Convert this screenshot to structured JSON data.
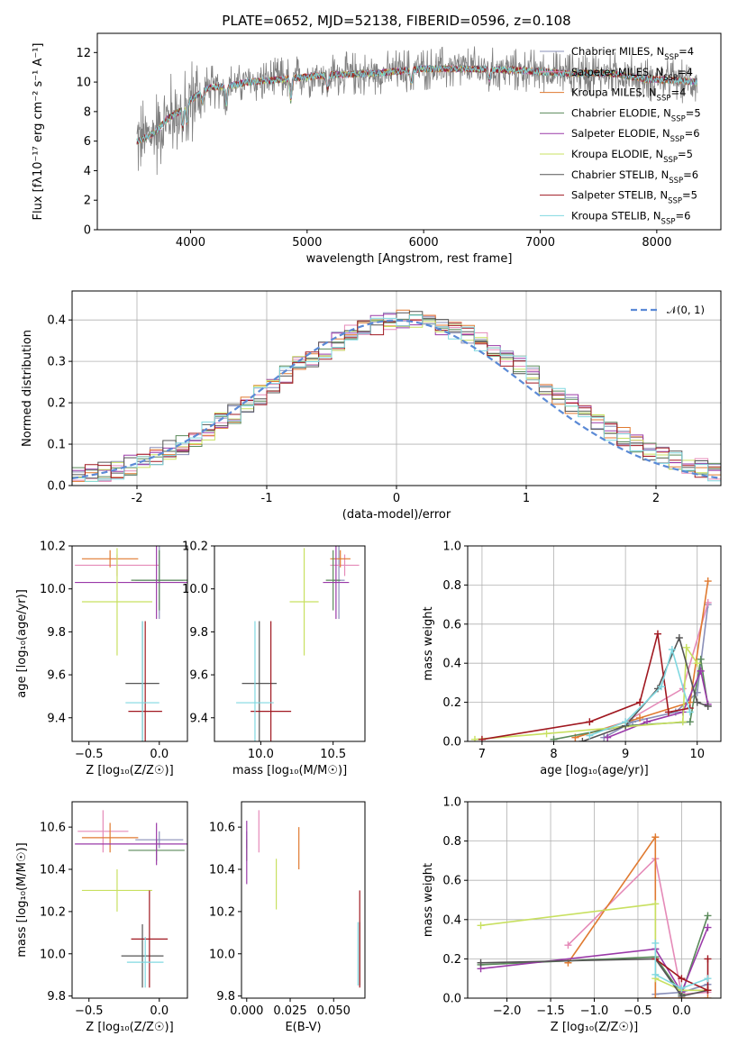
{
  "figure": {
    "title": "PLATE=0652, MJD=52138, FIBERID=0596, z=0.108",
    "palette": {
      "miles_chabrier": "#8a8fb8",
      "miles_salpeter": "#e58ab8",
      "miles_kroupa": "#e07a30",
      "elodie_chabrier": "#5a8a5a",
      "elodie_salpeter": "#9a3aa8",
      "elodie_kroupa": "#c8e060",
      "stelib_chabrier": "#555555",
      "stelib_salpeter": "#a01820",
      "stelib_kroupa": "#80d8e0"
    }
  },
  "chart_data": [
    {
      "id": "spectrum",
      "type": "line",
      "xlabel": "wavelength [Angstrom, rest frame]",
      "ylabel": "Flux [fλ10⁻¹⁷ erg cm⁻² s⁻¹ A⁻¹]",
      "xlim": [
        3200,
        8550
      ],
      "ylim": [
        0,
        13.3
      ],
      "xticks": [
        "4000",
        "5000",
        "6000",
        "7000",
        "8000"
      ],
      "yticks": [
        "0",
        "2",
        "4",
        "6",
        "8",
        "10",
        "12"
      ],
      "legend_position": "top-right",
      "continuum": {
        "x": [
          3550,
          3700,
          3800,
          3900,
          4000,
          4150,
          4300,
          4500,
          4800,
          5200,
          5600,
          6000,
          6400,
          6800,
          7200,
          7600,
          7900,
          8200,
          8350
        ],
        "y": [
          6.0,
          6.6,
          7.5,
          8.0,
          8.8,
          9.6,
          9.7,
          10.0,
          10.2,
          10.5,
          10.6,
          10.9,
          10.9,
          10.8,
          10.6,
          10.6,
          10.2,
          10.1,
          10.0
        ]
      },
      "series": [
        {
          "name": "Chabrier MILES, N_SSP=4",
          "color_key": "miles_chabrier"
        },
        {
          "name": "Salpeter MILES, N_SSP=4",
          "color_key": "miles_salpeter"
        },
        {
          "name": "Kroupa MILES, N_SSP=4",
          "color_key": "miles_kroupa"
        },
        {
          "name": "Chabrier ELODIE, N_SSP=5",
          "color_key": "elodie_chabrier"
        },
        {
          "name": "Salpeter ELODIE, N_SSP=6",
          "color_key": "elodie_salpeter"
        },
        {
          "name": "Kroupa ELODIE, N_SSP=5",
          "color_key": "elodie_kroupa"
        },
        {
          "name": "Chabrier STELIB, N_SSP=6",
          "color_key": "stelib_chabrier"
        },
        {
          "name": "Salpeter STELIB, N_SSP=5",
          "color_key": "stelib_salpeter"
        },
        {
          "name": "Kroupa STELIB, N_SSP=6",
          "color_key": "stelib_kroupa"
        }
      ]
    },
    {
      "id": "residuals",
      "type": "line",
      "xlabel": "(data-model)/error",
      "ylabel": "Normed distribution",
      "xlim": [
        -2.5,
        2.5
      ],
      "ylim": [
        0,
        0.47
      ],
      "xticks": [
        -2,
        -1,
        0,
        1,
        2
      ],
      "yticks": [
        "0.0",
        "0.1",
        "0.2",
        "0.3",
        "0.4"
      ],
      "grid": true,
      "legend_position": "top-right",
      "reference_label": "𝒩(0, 1)",
      "bin_width": 0.1
    },
    {
      "id": "age_vs_Z",
      "type": "scatter",
      "xlabel": "Z [log₁₀(Z/Z☉)]",
      "ylabel": "age  [log₁₀(age/yr)]",
      "xlim": [
        -0.62,
        0.2
      ],
      "ylim": [
        9.29,
        10.2
      ],
      "xticks": [
        "−0.5",
        "0.0"
      ],
      "yticks": [
        "9.4",
        "9.6",
        "9.8",
        "10.0",
        "10.2"
      ],
      "points": [
        {
          "key": "miles_chabrier",
          "x": 0.0,
          "y": 10.04,
          "xerr": 0.17,
          "yerr": 0.18
        },
        {
          "key": "miles_salpeter",
          "x": -0.3,
          "y": 10.11,
          "xerr": 0.3,
          "yerr": 0.05
        },
        {
          "key": "miles_kroupa",
          "x": -0.35,
          "y": 10.14,
          "xerr": 0.2,
          "yerr": 0.04
        },
        {
          "key": "elodie_chabrier",
          "x": 0.0,
          "y": 10.04,
          "xerr": 0.2,
          "yerr": 0.14
        },
        {
          "key": "elodie_salpeter",
          "x": -0.02,
          "y": 10.03,
          "xerr": 0.58,
          "yerr": 0.17
        },
        {
          "key": "elodie_kroupa",
          "x": -0.3,
          "y": 9.94,
          "xerr": 0.25,
          "yerr": 0.25
        },
        {
          "key": "stelib_chabrier",
          "x": -0.12,
          "y": 9.56,
          "xerr": 0.12,
          "yerr": 0.29
        },
        {
          "key": "stelib_salpeter",
          "x": -0.1,
          "y": 9.43,
          "xerr": 0.12,
          "yerr": 0.42
        },
        {
          "key": "stelib_kroupa",
          "x": -0.12,
          "y": 9.47,
          "xerr": 0.12,
          "yerr": 0.38
        }
      ]
    },
    {
      "id": "age_vs_mass",
      "type": "scatter",
      "xlabel": "mass [log₁₀(M/M☉)]",
      "ylabel": "",
      "xlim": [
        9.68,
        10.72
      ],
      "ylim": [
        9.29,
        10.2
      ],
      "xticks": [
        "10.0",
        "10.5"
      ],
      "yticks": [
        "9.4",
        "9.6",
        "9.8",
        "10.0",
        "10.2"
      ],
      "points": [
        {
          "key": "miles_chabrier",
          "x": 10.54,
          "y": 10.04,
          "xerr": 0.04,
          "yerr": 0.18
        },
        {
          "key": "miles_salpeter",
          "x": 10.58,
          "y": 10.11,
          "xerr": 0.1,
          "yerr": 0.05
        },
        {
          "key": "miles_kroupa",
          "x": 10.55,
          "y": 10.14,
          "xerr": 0.07,
          "yerr": 0.04
        },
        {
          "key": "elodie_chabrier",
          "x": 10.5,
          "y": 10.04,
          "xerr": 0.05,
          "yerr": 0.14
        },
        {
          "key": "elodie_salpeter",
          "x": 10.52,
          "y": 10.03,
          "xerr": 0.09,
          "yerr": 0.17
        },
        {
          "key": "elodie_kroupa",
          "x": 10.3,
          "y": 9.94,
          "xerr": 0.1,
          "yerr": 0.25
        },
        {
          "key": "stelib_chabrier",
          "x": 9.99,
          "y": 9.56,
          "xerr": 0.12,
          "yerr": 0.29
        },
        {
          "key": "stelib_salpeter",
          "x": 10.07,
          "y": 9.43,
          "xerr": 0.14,
          "yerr": 0.42
        },
        {
          "key": "stelib_kroupa",
          "x": 9.96,
          "y": 9.47,
          "xerr": 0.13,
          "yerr": 0.38
        }
      ]
    },
    {
      "id": "weight_vs_age",
      "type": "line",
      "xlabel": "age  [log₁₀(age/yr)]",
      "ylabel": "mass weight",
      "xlim": [
        6.8,
        10.33
      ],
      "ylim": [
        0,
        1.0
      ],
      "xticks": [
        "7",
        "8",
        "9",
        "10"
      ],
      "yticks": [
        "0.0",
        "0.2",
        "0.4",
        "0.6",
        "0.8",
        "1.0"
      ],
      "grid": true,
      "series": [
        {
          "key": "miles_chabrier",
          "x": [
            8.7,
            9.1,
            9.7,
            10.0,
            10.15
          ],
          "y": [
            0.02,
            0.1,
            0.15,
            0.25,
            0.7
          ]
        },
        {
          "key": "miles_salpeter",
          "x": [
            8.3,
            9.0,
            9.8,
            10.15
          ],
          "y": [
            0.02,
            0.1,
            0.27,
            0.71
          ]
        },
        {
          "key": "miles_kroupa",
          "x": [
            8.3,
            9.2,
            9.9,
            10.15
          ],
          "y": [
            0.02,
            0.12,
            0.2,
            0.82
          ]
        },
        {
          "key": "elodie_chabrier",
          "x": [
            8.0,
            9.0,
            9.9,
            10.05,
            10.15
          ],
          "y": [
            0.01,
            0.08,
            0.1,
            0.42,
            0.18
          ]
        },
        {
          "key": "elodie_salpeter",
          "x": [
            8.75,
            9.3,
            9.8,
            10.05,
            10.15
          ],
          "y": [
            0.02,
            0.1,
            0.15,
            0.36,
            0.19
          ]
        },
        {
          "key": "elodie_kroupa",
          "x": [
            6.9,
            7.9,
            9.8,
            9.85,
            10.0
          ],
          "y": [
            0.01,
            0.04,
            0.1,
            0.48,
            0.4
          ]
        },
        {
          "key": "stelib_chabrier",
          "x": [
            8.4,
            9.0,
            9.45,
            9.75,
            10.0,
            10.15
          ],
          "y": [
            0.0,
            0.08,
            0.27,
            0.53,
            0.2,
            0.18
          ]
        },
        {
          "key": "stelib_salpeter",
          "x": [
            7.0,
            8.5,
            9.2,
            9.45,
            9.6,
            9.9
          ],
          "y": [
            0.01,
            0.1,
            0.2,
            0.55,
            0.15,
            0.17
          ]
        },
        {
          "key": "stelib_kroupa",
          "x": [
            8.5,
            9.0,
            9.5,
            9.65,
            9.9
          ],
          "y": [
            0.03,
            0.1,
            0.28,
            0.47,
            0.15
          ]
        }
      ]
    },
    {
      "id": "mass_vs_Z",
      "type": "scatter",
      "xlabel": "Z [log₁₀(Z/Z☉)]",
      "ylabel": "mass [log₁₀(M/M☉)]",
      "xlim": [
        -0.62,
        0.2
      ],
      "ylim": [
        9.79,
        10.72
      ],
      "xticks": [
        "−0.5",
        "0.0"
      ],
      "yticks": [
        "9.8",
        "10.0",
        "10.2",
        "10.4",
        "10.6"
      ],
      "points": [
        {
          "key": "miles_chabrier",
          "x": 0.0,
          "y": 10.54,
          "xerr": 0.17,
          "yerr": 0.04
        },
        {
          "key": "miles_salpeter",
          "x": -0.4,
          "y": 10.58,
          "xerr": 0.18,
          "yerr": 0.1
        },
        {
          "key": "miles_kroupa",
          "x": -0.35,
          "y": 10.55,
          "xerr": 0.2,
          "yerr": 0.07
        },
        {
          "key": "elodie_chabrier",
          "x": -0.02,
          "y": 10.49,
          "xerr": 0.2,
          "yerr": 0.05
        },
        {
          "key": "elodie_salpeter",
          "x": -0.02,
          "y": 10.52,
          "xerr": 0.58,
          "yerr": 0.1
        },
        {
          "key": "elodie_kroupa",
          "x": -0.3,
          "y": 10.3,
          "xerr": 0.25,
          "yerr": 0.1
        },
        {
          "key": "stelib_chabrier",
          "x": -0.12,
          "y": 9.99,
          "xerr": 0.15,
          "yerr": 0.15
        },
        {
          "key": "stelib_salpeter",
          "x": -0.07,
          "y": 10.07,
          "xerr": 0.13,
          "yerr": 0.23
        },
        {
          "key": "stelib_kroupa",
          "x": -0.1,
          "y": 9.96,
          "xerr": 0.13,
          "yerr": 0.12
        }
      ]
    },
    {
      "id": "mass_vs_ebv",
      "type": "scatter",
      "xlabel": "E(B-V)",
      "ylabel": "",
      "xlim": [
        -0.003,
        0.068
      ],
      "ylim": [
        9.79,
        10.72
      ],
      "xticks": [
        "0.000",
        "0.025",
        "0.050"
      ],
      "yticks": [
        "9.8",
        "10.0",
        "10.2",
        "10.4",
        "10.6"
      ],
      "points": [
        {
          "key": "miles_chabrier",
          "x": 0.0,
          "y": 10.54,
          "yerr": 0.04
        },
        {
          "key": "miles_salpeter",
          "x": 0.007,
          "y": 10.58,
          "yerr": 0.1
        },
        {
          "key": "miles_kroupa",
          "x": 0.03,
          "y": 10.5,
          "yerr": 0.1
        },
        {
          "key": "elodie_chabrier",
          "x": 0.0,
          "y": 10.49,
          "yerr": 0.05
        },
        {
          "key": "elodie_salpeter",
          "x": 0.0,
          "y": 10.48,
          "yerr": 0.15
        },
        {
          "key": "elodie_kroupa",
          "x": 0.017,
          "y": 10.33,
          "yerr": 0.12
        },
        {
          "key": "stelib_chabrier",
          "x": 0.065,
          "y": 10.0,
          "yerr": 0.15
        },
        {
          "key": "stelib_salpeter",
          "x": 0.065,
          "y": 10.07,
          "yerr": 0.23
        },
        {
          "key": "stelib_kroupa",
          "x": 0.064,
          "y": 10.0,
          "yerr": 0.15
        }
      ]
    },
    {
      "id": "weight_vs_Z",
      "type": "line",
      "xlabel": "Z [log₁₀(Z/Z☉)]",
      "ylabel": "mass weight",
      "xlim": [
        -2.45,
        0.45
      ],
      "ylim": [
        0,
        1.0
      ],
      "xticks": [
        "−2.0",
        "−1.5",
        "−1.0",
        "−0.5",
        "0.0"
      ],
      "yticks": [
        "0.0",
        "0.2",
        "0.4",
        "0.6",
        "0.8",
        "1.0"
      ],
      "grid": true,
      "series": [
        {
          "key": "miles_chabrier",
          "x": [
            -0.3,
            -0.3,
            0.0,
            0.3
          ],
          "y": [
            0.25,
            0.02,
            0.03,
            0.07
          ]
        },
        {
          "key": "miles_salpeter",
          "x": [
            -1.3,
            -0.3,
            0.0,
            0.3
          ],
          "y": [
            0.27,
            0.71,
            0.02,
            0.03
          ]
        },
        {
          "key": "miles_kroupa",
          "x": [
            -1.3,
            -0.3,
            -0.3,
            0.0,
            0.3
          ],
          "y": [
            0.18,
            0.82,
            0.0,
            0.0,
            0.0
          ]
        },
        {
          "key": "elodie_chabrier",
          "x": [
            -2.3,
            -0.3,
            0.0,
            0.3
          ],
          "y": [
            0.17,
            0.21,
            0.02,
            0.42
          ]
        },
        {
          "key": "elodie_salpeter",
          "x": [
            -2.3,
            -0.3,
            0.0,
            0.3
          ],
          "y": [
            0.15,
            0.25,
            0.03,
            0.36
          ]
        },
        {
          "key": "elodie_kroupa",
          "x": [
            -2.3,
            -0.3,
            -0.3,
            0.0,
            0.3
          ],
          "y": [
            0.37,
            0.48,
            0.1,
            0.04,
            0.04
          ]
        },
        {
          "key": "stelib_chabrier",
          "x": [
            -2.3,
            -0.3,
            0.0,
            0.3
          ],
          "y": [
            0.18,
            0.2,
            0.01,
            0.04
          ]
        },
        {
          "key": "stelib_salpeter",
          "x": [
            -0.3,
            0.0,
            0.3,
            0.3
          ],
          "y": [
            0.2,
            0.1,
            0.04,
            0.2
          ]
        },
        {
          "key": "stelib_kroupa",
          "x": [
            -0.3,
            -0.3,
            0.0,
            0.3
          ],
          "y": [
            0.28,
            0.12,
            0.05,
            0.1
          ]
        }
      ]
    }
  ]
}
